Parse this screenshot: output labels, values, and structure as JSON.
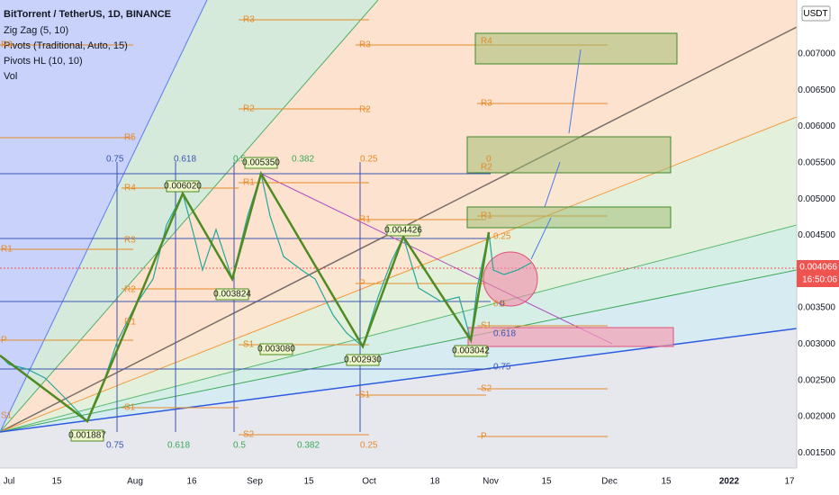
{
  "header": {
    "title": "BitTorrent / TetherUS, 1D, BINANCE",
    "indicators": [
      "Zig Zag (5, 10)",
      "Pivots (Traditional, Auto, 15)",
      "Pivots HL (10, 10)",
      "Vol"
    ]
  },
  "currency": "USDT",
  "price_axis": [
    "0.007000",
    "0.006500",
    "0.006000",
    "0.005500",
    "0.005000",
    "0.004500",
    "0.004000",
    "0.003500",
    "0.003000",
    "0.002500",
    "0.002000",
    "0.001500"
  ],
  "current_price": "0.004066",
  "countdown": "16:50:06",
  "time_axis": [
    "Jul",
    "15",
    "Aug",
    "16",
    "Sep",
    "15",
    "Oct",
    "18",
    "Nov",
    "15",
    "Dec",
    "15",
    "2022",
    "17"
  ],
  "zigzag_labels": [
    "0.006020",
    "0.005350",
    "0.004426",
    "0.003824",
    "0.003080",
    "0.002930",
    "0.003042",
    "0.001887"
  ],
  "pivot_labels": [
    "R3",
    "R3",
    "R2",
    "R2",
    "R5",
    "R3",
    "R4",
    "R1",
    "R1",
    "R3",
    "R2",
    "R1",
    "P",
    "P",
    "R1",
    "S1",
    "S1",
    "S1",
    "S1",
    "R4",
    "R3",
    "R2",
    "R1",
    "S1",
    "S2",
    "S2",
    "P"
  ],
  "fib_labels": [
    "0.75",
    "0.618",
    "0.5",
    "0.382",
    "0.25",
    "0",
    "0",
    "0.25",
    "0.5",
    "0.618",
    "0.75",
    "0.75",
    "0.618",
    "0.5",
    "0.382",
    "0.25"
  ]
}
